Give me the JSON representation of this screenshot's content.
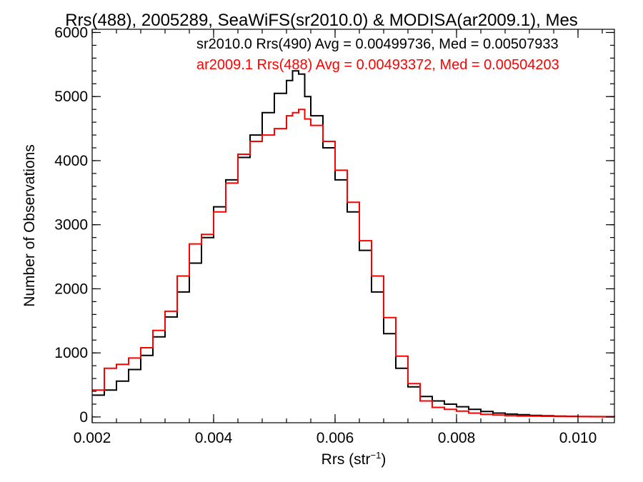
{
  "chart_data": {
    "type": "line",
    "title": "Rrs(488), 2005289, SeaWiFS(sr2010.0) & MODISA(ar2009.1), Mes",
    "xlabel_main": "Rrs (str",
    "xlabel_sup": "−1",
    "xlabel_close": ")",
    "ylabel": "Number of Observations",
    "xlim": [
      0.002,
      0.0106
    ],
    "ylim": [
      -90,
      6050
    ],
    "xticks": [
      0.002,
      0.004,
      0.006,
      0.008,
      0.01
    ],
    "xtick_labels": [
      "0.002",
      "0.004",
      "0.006",
      "0.008",
      "0.010"
    ],
    "yticks": [
      0,
      1000,
      2000,
      3000,
      4000,
      5000,
      6000
    ],
    "ytick_labels": [
      "0",
      "1000",
      "2000",
      "3000",
      "4000",
      "5000",
      "6000"
    ],
    "legend_position": "top-right",
    "series": [
      {
        "name": "sr2010.0",
        "legend_text": "sr2010.0 Rrs(490) Avg = 0.00499736, Med = 0.00507933",
        "color": "#000000",
        "x": [
          0.002,
          0.0022,
          0.0024,
          0.0026,
          0.0028,
          0.003,
          0.0032,
          0.0034,
          0.0036,
          0.0038,
          0.004,
          0.0042,
          0.0044,
          0.0046,
          0.0048,
          0.005,
          0.0052,
          0.0053,
          0.0054,
          0.0055,
          0.0056,
          0.0058,
          0.006,
          0.0062,
          0.0064,
          0.0066,
          0.0068,
          0.007,
          0.0072,
          0.0074,
          0.0076,
          0.0078,
          0.008,
          0.0082,
          0.0084,
          0.0086,
          0.0088,
          0.009,
          0.0092,
          0.0094,
          0.0096,
          0.0098,
          0.01,
          0.0102,
          0.0104,
          0.0106
        ],
        "y": [
          340,
          420,
          560,
          740,
          960,
          1250,
          1560,
          1950,
          2400,
          2800,
          3280,
          3700,
          4050,
          4400,
          4750,
          5050,
          5250,
          5400,
          5350,
          5000,
          4700,
          4200,
          3700,
          3200,
          2600,
          1950,
          1300,
          760,
          470,
          320,
          250,
          200,
          160,
          120,
          85,
          60,
          45,
          35,
          25,
          18,
          14,
          10,
          8,
          6,
          5,
          4
        ]
      },
      {
        "name": "ar2009.1",
        "legend_text": "ar2009.1 Rrs(488) Avg = 0.00493372, Med = 0.00504203",
        "color": "#ff0000",
        "x": [
          0.002,
          0.0022,
          0.0024,
          0.0026,
          0.0028,
          0.003,
          0.0032,
          0.0034,
          0.0036,
          0.0038,
          0.004,
          0.0042,
          0.0044,
          0.0046,
          0.0048,
          0.005,
          0.0052,
          0.0053,
          0.0054,
          0.0055,
          0.0056,
          0.0058,
          0.006,
          0.0062,
          0.0064,
          0.0066,
          0.0068,
          0.007,
          0.0072,
          0.0074,
          0.0076,
          0.0078,
          0.008,
          0.0082,
          0.0084,
          0.0086,
          0.0088,
          0.009,
          0.0092,
          0.0094,
          0.0096,
          0.0098,
          0.01,
          0.0102,
          0.0104,
          0.0106
        ],
        "y": [
          420,
          760,
          820,
          920,
          1080,
          1350,
          1650,
          2200,
          2700,
          2850,
          3200,
          3650,
          4100,
          4300,
          4400,
          4500,
          4700,
          4750,
          4800,
          4650,
          4550,
          4300,
          3850,
          3350,
          2750,
          2200,
          1550,
          950,
          520,
          250,
          150,
          120,
          90,
          60,
          40,
          30,
          20,
          15,
          12,
          10,
          8,
          6,
          5,
          4,
          3,
          3
        ]
      }
    ]
  }
}
